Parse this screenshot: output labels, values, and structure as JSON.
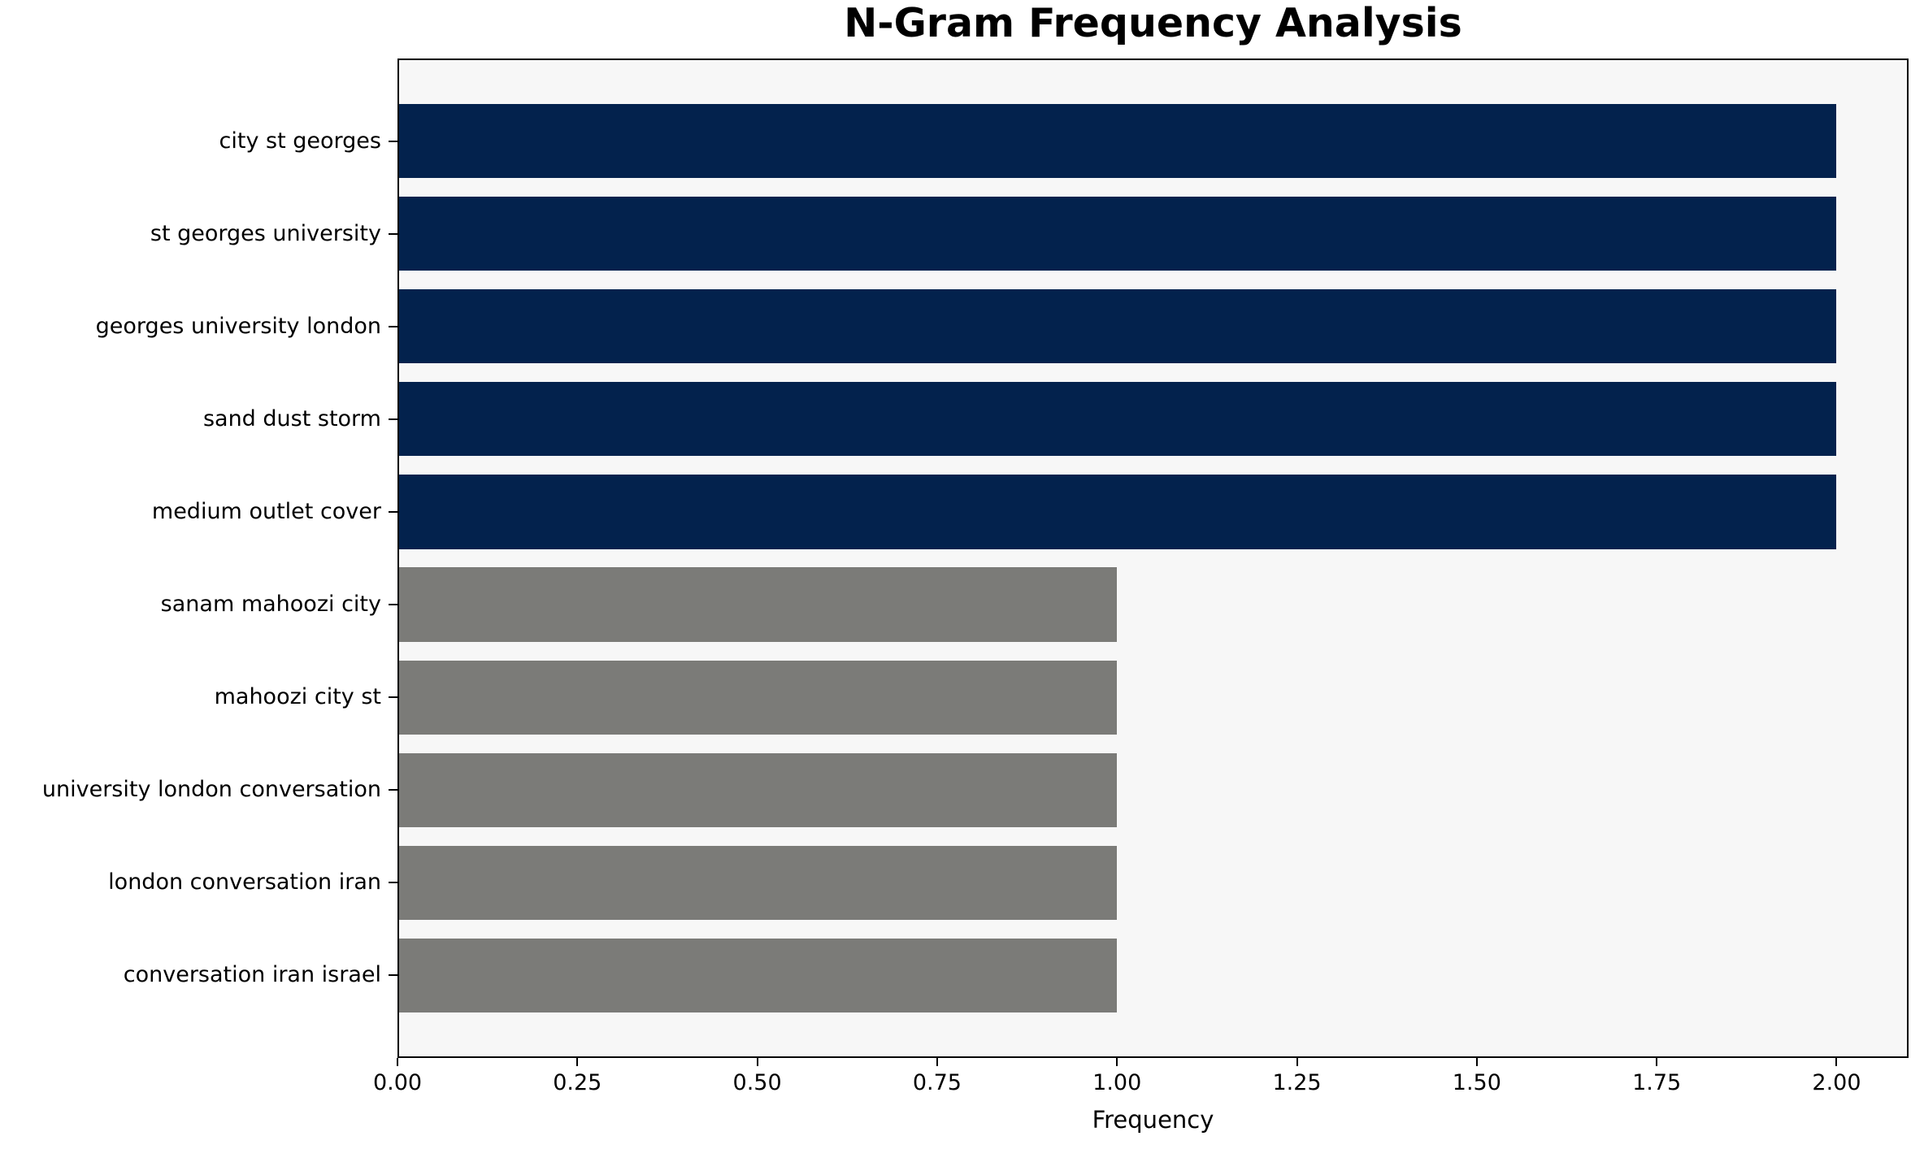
{
  "figure": {
    "title": "N-Gram Frequency Analysis",
    "background_color": "#ffffff"
  },
  "chart_data": {
    "type": "bar",
    "orientation": "horizontal",
    "title": "N-Gram Frequency Analysis",
    "xlabel": "Frequency",
    "ylabel": "",
    "categories": [
      "city st georges",
      "st georges university",
      "georges university london",
      "sand dust storm",
      "medium outlet cover",
      "sanam mahoozi city",
      "mahoozi city st",
      "university london conversation",
      "london conversation iran",
      "conversation iran israel"
    ],
    "values": [
      2,
      2,
      2,
      2,
      2,
      1,
      1,
      1,
      1,
      1
    ],
    "bar_colors": [
      "#03224d",
      "#03224d",
      "#03224d",
      "#03224d",
      "#03224d",
      "#7b7b78",
      "#7b7b78",
      "#7b7b78",
      "#7b7b78",
      "#7b7b78"
    ],
    "xlim": [
      0,
      2.1
    ],
    "xtick_values": [
      0,
      0.25,
      0.5,
      0.75,
      1.0,
      1.25,
      1.5,
      1.75,
      2.0
    ],
    "xtick_labels": [
      "0.00",
      "0.25",
      "0.50",
      "0.75",
      "1.00",
      "1.25",
      "1.50",
      "1.75",
      "2.00"
    ],
    "grid": false,
    "legend_position": "none",
    "plot_background_color": "#f7f7f7",
    "text_color": "#000000",
    "spine_color": "#000000",
    "high_value_color": "#03224d",
    "low_value_color": "#7b7b78"
  }
}
